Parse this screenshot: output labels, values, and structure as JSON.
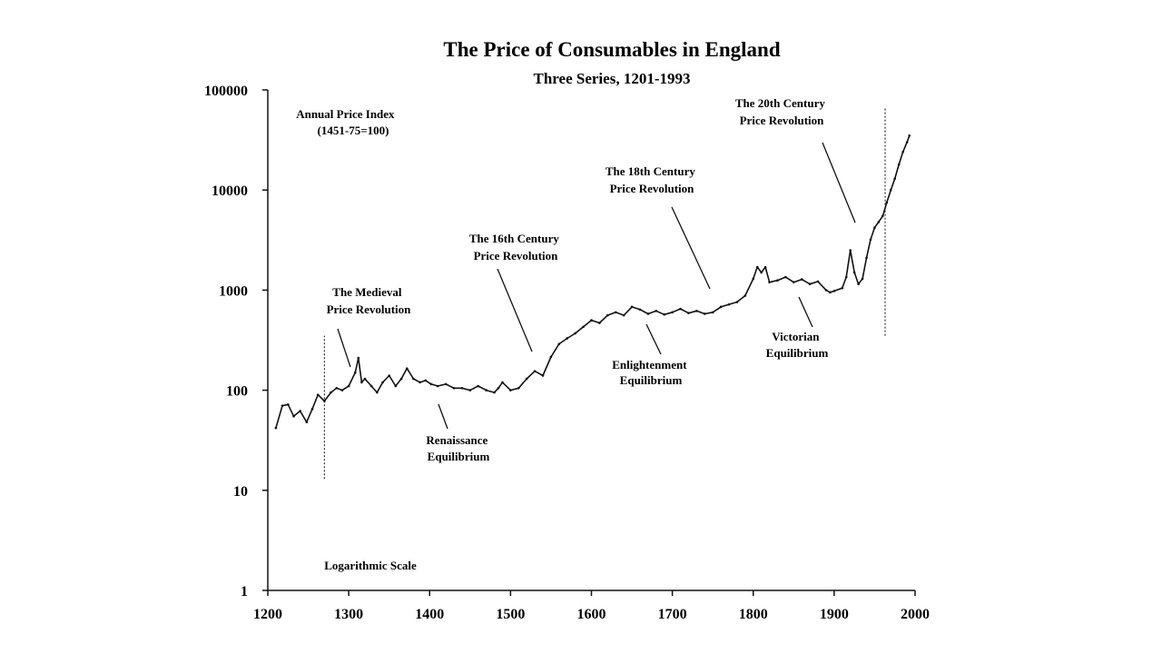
{
  "chart_data": {
    "type": "line",
    "title": "The Price of Consumables in England",
    "subtitle": "Three Series, 1201-1993",
    "xlabel": "",
    "ylabel": "",
    "xlim": [
      1200,
      2000
    ],
    "ylim": [
      1,
      100000
    ],
    "yscale": "log",
    "x_ticks": [
      1200,
      1300,
      1400,
      1500,
      1600,
      1700,
      1800,
      1900,
      2000
    ],
    "x_tick_labels": [
      "1200",
      "1300",
      "1400",
      "1500",
      "1600",
      "1700",
      "1800",
      "1900",
      "2000"
    ],
    "y_ticks": [
      1,
      10,
      100,
      1000,
      10000,
      100000
    ],
    "y_tick_labels": [
      "1",
      "10",
      "100",
      "1000",
      "10000",
      "100000"
    ],
    "grid": false,
    "series": [
      {
        "name": "Annual Price Index",
        "x": [
          1210,
          1218,
          1225,
          1232,
          1240,
          1248,
          1255,
          1262,
          1270,
          1278,
          1285,
          1292,
          1300,
          1308,
          1312,
          1316,
          1320,
          1328,
          1335,
          1342,
          1350,
          1358,
          1365,
          1372,
          1380,
          1388,
          1395,
          1402,
          1410,
          1420,
          1430,
          1440,
          1450,
          1460,
          1470,
          1480,
          1485,
          1490,
          1500,
          1510,
          1520,
          1530,
          1540,
          1550,
          1560,
          1570,
          1580,
          1590,
          1600,
          1610,
          1620,
          1630,
          1640,
          1650,
          1660,
          1670,
          1680,
          1690,
          1700,
          1710,
          1720,
          1730,
          1740,
          1750,
          1760,
          1770,
          1780,
          1790,
          1800,
          1805,
          1810,
          1815,
          1820,
          1830,
          1840,
          1850,
          1860,
          1870,
          1880,
          1890,
          1895,
          1900,
          1910,
          1915,
          1920,
          1925,
          1930,
          1935,
          1940,
          1945,
          1950,
          1955,
          1960,
          1965,
          1970,
          1975,
          1980,
          1985,
          1990,
          1993
        ],
        "values": [
          42,
          70,
          72,
          55,
          62,
          48,
          65,
          90,
          78,
          95,
          105,
          100,
          110,
          150,
          210,
          120,
          130,
          110,
          95,
          120,
          140,
          110,
          130,
          165,
          130,
          120,
          125,
          115,
          110,
          115,
          105,
          105,
          100,
          110,
          100,
          95,
          105,
          120,
          100,
          105,
          130,
          155,
          140,
          215,
          290,
          330,
          370,
          430,
          500,
          470,
          560,
          600,
          560,
          680,
          640,
          580,
          620,
          570,
          600,
          650,
          590,
          620,
          580,
          600,
          680,
          720,
          760,
          880,
          1300,
          1700,
          1500,
          1700,
          1200,
          1250,
          1350,
          1200,
          1280,
          1150,
          1220,
          1000,
          950,
          980,
          1050,
          1350,
          2500,
          1500,
          1150,
          1300,
          2100,
          3200,
          4200,
          4800,
          5500,
          7500,
          10000,
          13000,
          18000,
          24000,
          30000,
          35000
        ]
      }
    ],
    "annotations": [
      {
        "lines": [
          "Annual Price Index",
          "(1451-75=100)"
        ]
      },
      {
        "lines": [
          "The Medieval",
          "Price Revolution"
        ]
      },
      {
        "lines": [
          "Renaissance",
          "Equilibrium"
        ]
      },
      {
        "lines": [
          "The 16th Century",
          "Price Revolution"
        ]
      },
      {
        "lines": [
          "Enlightenment",
          "Equilibrium"
        ]
      },
      {
        "lines": [
          "The 18th Century",
          "Price Revolution"
        ]
      },
      {
        "lines": [
          "Victorian",
          "Equilibrium"
        ]
      },
      {
        "lines": [
          "The 20th Century",
          "Price Revolution"
        ]
      },
      {
        "lines": [
          "Logarithmic  Scale"
        ]
      }
    ]
  }
}
